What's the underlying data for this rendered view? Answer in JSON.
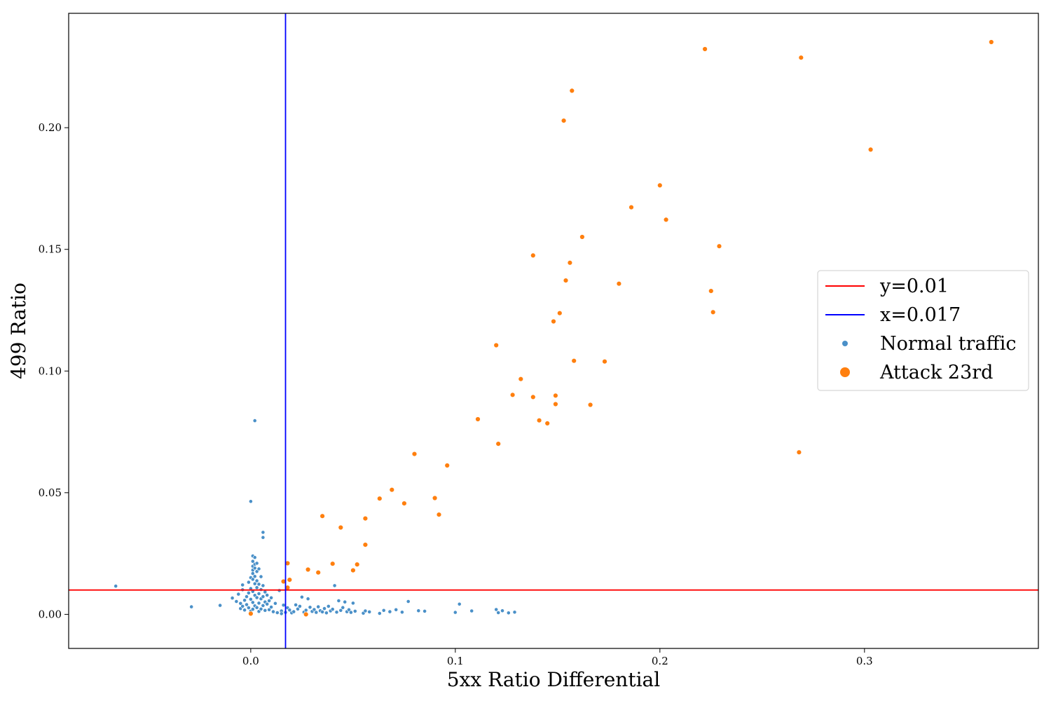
{
  "chart_data": {
    "type": "scatter",
    "title": "",
    "xlabel": "5xx Ratio Differential",
    "ylabel": "499 Ratio",
    "xlim": [
      -0.089,
      0.385
    ],
    "ylim": [
      -0.014,
      0.247
    ],
    "xticks": [
      0.0,
      0.1,
      0.2,
      0.3
    ],
    "xtick_labels": [
      "0.0",
      "0.1",
      "0.2",
      "0.3"
    ],
    "yticks": [
      0.0,
      0.05,
      0.1,
      0.15,
      0.2
    ],
    "ytick_labels": [
      "0.00",
      "0.05",
      "0.10",
      "0.15",
      "0.20"
    ],
    "grid": false,
    "legend_position": "center-right",
    "reference_lines": [
      {
        "name": "y=0.01",
        "orientation": "horizontal",
        "value": 0.01,
        "color": "#ff0000"
      },
      {
        "name": "x=0.017",
        "orientation": "vertical",
        "value": 0.017,
        "color": "#0000ff"
      }
    ],
    "series": [
      {
        "name": "Normal traffic",
        "color": "#4a90c8",
        "marker": "small-dot",
        "points": [
          [
            -0.066,
            0.0116
          ],
          [
            -0.029,
            0.0031
          ],
          [
            -0.015,
            0.0037
          ],
          [
            -0.009,
            0.0067
          ],
          [
            -0.007,
            0.0053
          ],
          [
            -0.006,
            0.0083
          ],
          [
            -0.005,
            0.0024
          ],
          [
            -0.005,
            0.0045
          ],
          [
            -0.004,
            0.0101
          ],
          [
            -0.004,
            0.0121
          ],
          [
            -0.004,
            0.0033
          ],
          [
            -0.003,
            0.0058
          ],
          [
            -0.003,
            0.0018
          ],
          [
            -0.002,
            0.0073
          ],
          [
            -0.002,
            0.004
          ],
          [
            -0.001,
            0.0132
          ],
          [
            -0.001,
            0.0088
          ],
          [
            -0.001,
            0.0027
          ],
          [
            0.0,
            0.0151
          ],
          [
            0.0,
            0.0106
          ],
          [
            0.0,
            0.0062
          ],
          [
            0.0,
            0.0013
          ],
          [
            0.0,
            0.0464
          ],
          [
            0.001,
            0.024
          ],
          [
            0.001,
            0.0218
          ],
          [
            0.001,
            0.0198
          ],
          [
            0.001,
            0.0182
          ],
          [
            0.001,
            0.0168
          ],
          [
            0.001,
            0.0144
          ],
          [
            0.001,
            0.0094
          ],
          [
            0.001,
            0.0049
          ],
          [
            0.001,
            0.0021
          ],
          [
            0.002,
            0.0234
          ],
          [
            0.002,
            0.0206
          ],
          [
            0.002,
            0.019
          ],
          [
            0.002,
            0.0156
          ],
          [
            0.002,
            0.0126
          ],
          [
            0.002,
            0.0078
          ],
          [
            0.002,
            0.0035
          ],
          [
            0.002,
            0.0796
          ],
          [
            0.003,
            0.021
          ],
          [
            0.003,
            0.0176
          ],
          [
            0.003,
            0.0138
          ],
          [
            0.003,
            0.011
          ],
          [
            0.003,
            0.0069
          ],
          [
            0.003,
            0.0028
          ],
          [
            0.004,
            0.0187
          ],
          [
            0.004,
            0.0124
          ],
          [
            0.004,
            0.0085
          ],
          [
            0.004,
            0.0046
          ],
          [
            0.004,
            0.0012
          ],
          [
            0.005,
            0.0155
          ],
          [
            0.005,
            0.0102
          ],
          [
            0.005,
            0.0064
          ],
          [
            0.005,
            0.0022
          ],
          [
            0.006,
            0.0337
          ],
          [
            0.006,
            0.0316
          ],
          [
            0.006,
            0.0118
          ],
          [
            0.006,
            0.0073
          ],
          [
            0.006,
            0.0036
          ],
          [
            0.007,
            0.0092
          ],
          [
            0.007,
            0.0051
          ],
          [
            0.007,
            0.0016
          ],
          [
            0.008,
            0.0079
          ],
          [
            0.008,
            0.0042
          ],
          [
            0.009,
            0.0056
          ],
          [
            0.009,
            0.0019
          ],
          [
            0.01,
            0.0068
          ],
          [
            0.01,
            0.003
          ],
          [
            0.011,
            0.0011
          ],
          [
            0.012,
            0.0045
          ],
          [
            0.013,
            0.0007
          ],
          [
            0.014,
            0.0098
          ],
          [
            0.015,
            0.0014
          ],
          [
            0.015,
            0.0003
          ],
          [
            0.016,
            0.0038
          ],
          [
            0.017,
            0.0008
          ],
          [
            0.018,
            0.0027
          ],
          [
            0.019,
            0.0018
          ],
          [
            0.02,
            0.0006
          ],
          [
            0.021,
            0.0011
          ],
          [
            0.022,
            0.0039
          ],
          [
            0.023,
            0.0022
          ],
          [
            0.024,
            0.0033
          ],
          [
            0.025,
            0.0071
          ],
          [
            0.026,
            0.0009
          ],
          [
            0.027,
            0.0017
          ],
          [
            0.028,
            0.0064
          ],
          [
            0.029,
            0.0029
          ],
          [
            0.03,
            0.0012
          ],
          [
            0.031,
            0.002
          ],
          [
            0.032,
            0.0008
          ],
          [
            0.033,
            0.0031
          ],
          [
            0.034,
            0.0015
          ],
          [
            0.035,
            0.001
          ],
          [
            0.036,
            0.0024
          ],
          [
            0.037,
            0.0006
          ],
          [
            0.038,
            0.0033
          ],
          [
            0.039,
            0.0014
          ],
          [
            0.04,
            0.0021
          ],
          [
            0.041,
            0.0118
          ],
          [
            0.042,
            0.0009
          ],
          [
            0.043,
            0.0056
          ],
          [
            0.044,
            0.0016
          ],
          [
            0.045,
            0.0028
          ],
          [
            0.046,
            0.0051
          ],
          [
            0.047,
            0.0011
          ],
          [
            0.048,
            0.0019
          ],
          [
            0.049,
            0.0008
          ],
          [
            0.05,
            0.0046
          ],
          [
            0.051,
            0.0013
          ],
          [
            0.055,
            0.0005
          ],
          [
            0.056,
            0.0014
          ],
          [
            0.058,
            0.001
          ],
          [
            0.063,
            0.0004
          ],
          [
            0.065,
            0.0016
          ],
          [
            0.068,
            0.0011
          ],
          [
            0.071,
            0.0019
          ],
          [
            0.074,
            0.0009
          ],
          [
            0.077,
            0.0053
          ],
          [
            0.082,
            0.0015
          ],
          [
            0.085,
            0.0013
          ],
          [
            0.1,
            0.0008
          ],
          [
            0.102,
            0.0042
          ],
          [
            0.108,
            0.0014
          ],
          [
            0.12,
            0.002
          ],
          [
            0.121,
            0.0007
          ],
          [
            0.123,
            0.0015
          ],
          [
            0.126,
            0.0006
          ],
          [
            0.129,
            0.0009
          ]
        ]
      },
      {
        "name": "Attack 23rd",
        "color": "#ff7f0e",
        "marker": "dot",
        "points": [
          [
            0.0,
            0.0003
          ],
          [
            0.016,
            0.0135
          ],
          [
            0.018,
            0.011
          ],
          [
            0.018,
            0.021
          ],
          [
            0.019,
            0.0142
          ],
          [
            0.027,
            0.0
          ],
          [
            0.028,
            0.0184
          ],
          [
            0.033,
            0.0172
          ],
          [
            0.035,
            0.0404
          ],
          [
            0.04,
            0.0208
          ],
          [
            0.044,
            0.0357
          ],
          [
            0.05,
            0.0181
          ],
          [
            0.052,
            0.0205
          ],
          [
            0.056,
            0.0286
          ],
          [
            0.056,
            0.0394
          ],
          [
            0.063,
            0.0476
          ],
          [
            0.069,
            0.0512
          ],
          [
            0.075,
            0.0456
          ],
          [
            0.08,
            0.0659
          ],
          [
            0.09,
            0.0478
          ],
          [
            0.092,
            0.041
          ],
          [
            0.096,
            0.0612
          ],
          [
            0.111,
            0.0802
          ],
          [
            0.12,
            0.1106
          ],
          [
            0.121,
            0.0701
          ],
          [
            0.128,
            0.0902
          ],
          [
            0.132,
            0.0967
          ],
          [
            0.138,
            0.0893
          ],
          [
            0.138,
            0.1475
          ],
          [
            0.141,
            0.0797
          ],
          [
            0.145,
            0.0785
          ],
          [
            0.148,
            0.1204
          ],
          [
            0.149,
            0.0899
          ],
          [
            0.149,
            0.0864
          ],
          [
            0.151,
            0.1238
          ],
          [
            0.153,
            0.2029
          ],
          [
            0.154,
            0.1372
          ],
          [
            0.156,
            0.1445
          ],
          [
            0.157,
            0.2152
          ],
          [
            0.158,
            0.1042
          ],
          [
            0.162,
            0.1551
          ],
          [
            0.166,
            0.0861
          ],
          [
            0.173,
            0.1039
          ],
          [
            0.18,
            0.1359
          ],
          [
            0.186,
            0.1673
          ],
          [
            0.2,
            0.1763
          ],
          [
            0.203,
            0.1622
          ],
          [
            0.222,
            0.2323
          ],
          [
            0.225,
            0.1329
          ],
          [
            0.226,
            0.1242
          ],
          [
            0.229,
            0.1513
          ],
          [
            0.268,
            0.0666
          ],
          [
            0.269,
            0.2288
          ],
          [
            0.303,
            0.191
          ],
          [
            0.362,
            0.2352
          ]
        ]
      }
    ]
  }
}
